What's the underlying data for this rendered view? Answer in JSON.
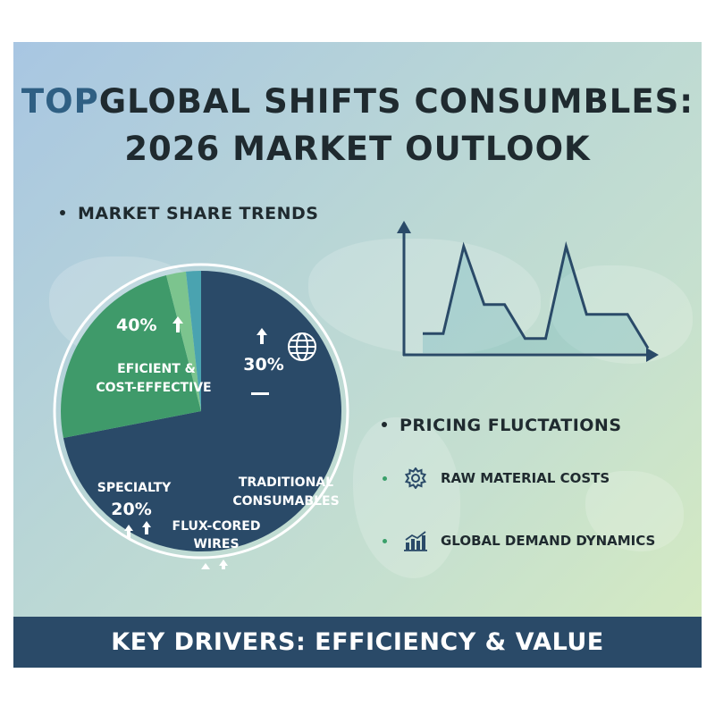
{
  "title": {
    "prefix": "TOP",
    "line1": "GLOBAL SHIFTS CONSUMBLES:",
    "line2": "2026 MARKET OUTLOOK"
  },
  "section_market_share": "MARKET SHARE TRENDS",
  "section_pricing": "PRICING FLUCTATIONS",
  "pricing_items": [
    {
      "label": "RAW MATERIAL COSTS",
      "icon": "gear-icon"
    },
    {
      "label": "GLOBAL DEMAND DYNAMICS",
      "icon": "bar-chart-icon"
    }
  ],
  "footer": "KEY DRIVERS: EFFICIENCY & VALUE",
  "colors": {
    "navy": "#2a4a68",
    "green": "#3f9a6a",
    "light_green": "#7cc48e",
    "teal": "#4aa3b0",
    "accent_green": "#3aa06a"
  },
  "chart_data": [
    {
      "type": "pie",
      "slices": [
        {
          "name": "TRADITIONAL CONSUMABLES",
          "value": 30,
          "color": "#2a4a68"
        },
        {
          "name": "EFICIENT & COST-EFFECTIVE",
          "value": 40,
          "color": "#3f9a6a"
        },
        {
          "name": "SPECIALTY",
          "value": 20,
          "color": "#2a4a68"
        },
        {
          "name": "FLUX-CORED WIRES",
          "value": null,
          "color": "#2a4a68"
        }
      ],
      "labels": {
        "eficient_pct": "40%",
        "eficient_name": [
          "EFICIENT &",
          "COST-EFFECTIVE"
        ],
        "traditional_pct": "30%",
        "traditional_name": [
          "TRADITIONAL",
          "CONSUMABLES"
        ],
        "specialty_name": "SPECIALTY",
        "specialty_pct": "20%",
        "flux_name": [
          "FLUX-CORED",
          "WIRES"
        ]
      },
      "icons": [
        "globe-icon",
        "up-arrow-icon"
      ]
    },
    {
      "type": "line",
      "title": "",
      "xlabel": "",
      "ylabel": "",
      "grid": false,
      "x": [
        0,
        1,
        2,
        3,
        4,
        5,
        6,
        7,
        8,
        9,
        10,
        11
      ],
      "y": [
        1,
        1,
        10,
        4,
        4,
        0.5,
        0.5,
        10,
        3,
        3,
        3,
        -0.5
      ],
      "ylim": [
        -1,
        11
      ]
    }
  ]
}
